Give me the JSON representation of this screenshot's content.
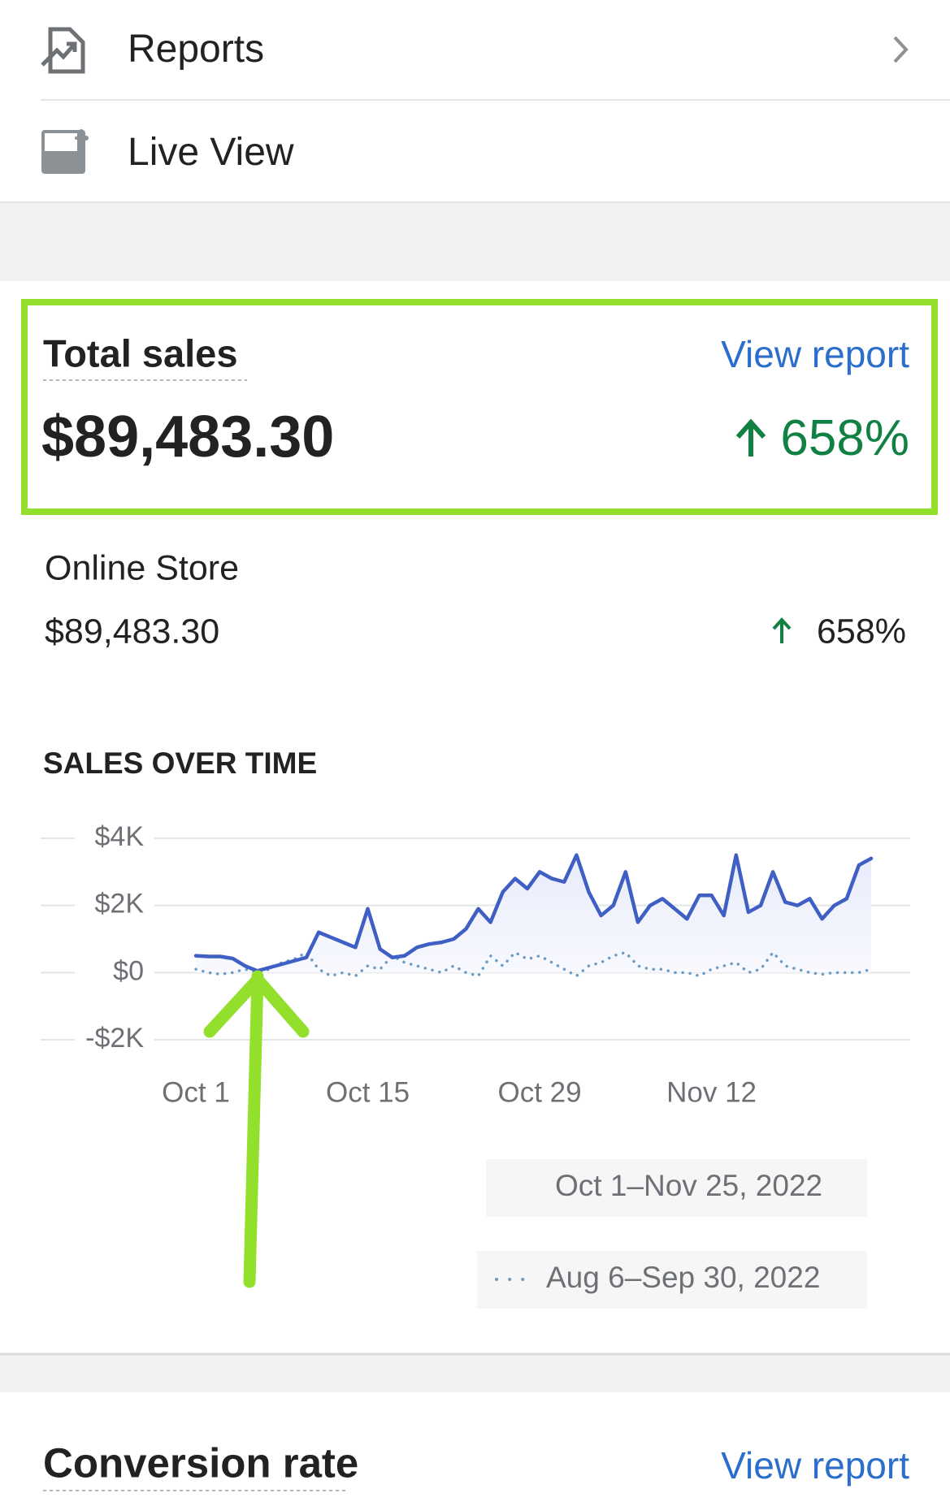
{
  "nav": [
    {
      "label": "Reports"
    },
    {
      "label": "Live View"
    }
  ],
  "total_sales": {
    "title": "Total sales",
    "link": "View report",
    "amount": "$89,483.30",
    "change": "658%"
  },
  "online_store": {
    "title": "Online Store",
    "amount": "$89,483.30",
    "change": "658%"
  },
  "chart_data": {
    "type": "line",
    "title": "SALES OVER TIME",
    "categories": [
      "Oct 1",
      null,
      null,
      null,
      null,
      null,
      null,
      null,
      null,
      null,
      null,
      null,
      null,
      null,
      "Oct 15",
      null,
      null,
      null,
      null,
      null,
      null,
      null,
      null,
      null,
      null,
      null,
      null,
      null,
      "Oct 29",
      null,
      null,
      null,
      null,
      null,
      null,
      null,
      null,
      null,
      null,
      null,
      null,
      null,
      "Nov 12",
      null,
      null,
      null,
      null,
      null,
      null,
      null,
      null,
      null,
      null,
      null,
      null,
      null
    ],
    "series": [
      {
        "name": "Oct 1–Nov 25, 2022",
        "color": "#3f5fc4",
        "style": "solid",
        "values": [
          500,
          480,
          480,
          420,
          200,
          50,
          150,
          250,
          350,
          450,
          1200,
          1050,
          900,
          750,
          1900,
          700,
          450,
          500,
          750,
          850,
          900,
          1000,
          1300,
          1900,
          1500,
          2400,
          2800,
          2500,
          3000,
          2800,
          2700,
          3500,
          2400,
          1700,
          2000,
          3000,
          1500,
          2000,
          2200,
          1900,
          1600,
          2300,
          2300,
          1700,
          3500,
          1800,
          2000,
          3000,
          2100,
          2000,
          2200,
          1600,
          2000,
          2200,
          3200,
          3400
        ]
      },
      {
        "name": "Aug 6–Sep 30, 2022",
        "color": "#6b9cc6",
        "style": "dotted",
        "values": [
          100,
          0,
          -50,
          0,
          100,
          0,
          100,
          300,
          400,
          600,
          100,
          -100,
          0,
          -100,
          200,
          100,
          500,
          300,
          200,
          100,
          0,
          200,
          0,
          -100,
          500,
          200,
          600,
          400,
          500,
          300,
          100,
          -100,
          200,
          300,
          500,
          600,
          200,
          100,
          100,
          0,
          0,
          -100,
          100,
          200,
          300,
          0,
          100,
          600,
          200,
          100,
          0,
          -50,
          0,
          0,
          0,
          100
        ]
      }
    ],
    "ylim": [
      -2000,
      4000
    ],
    "yticks": [
      {
        "value": -2000,
        "label": "-$2K"
      },
      {
        "value": 0,
        "label": "$0"
      },
      {
        "value": 2000,
        "label": "$2K"
      },
      {
        "value": 4000,
        "label": "$4K"
      }
    ],
    "grid": true
  },
  "conversion_rate": {
    "title": "Conversion rate",
    "link": "View report"
  }
}
